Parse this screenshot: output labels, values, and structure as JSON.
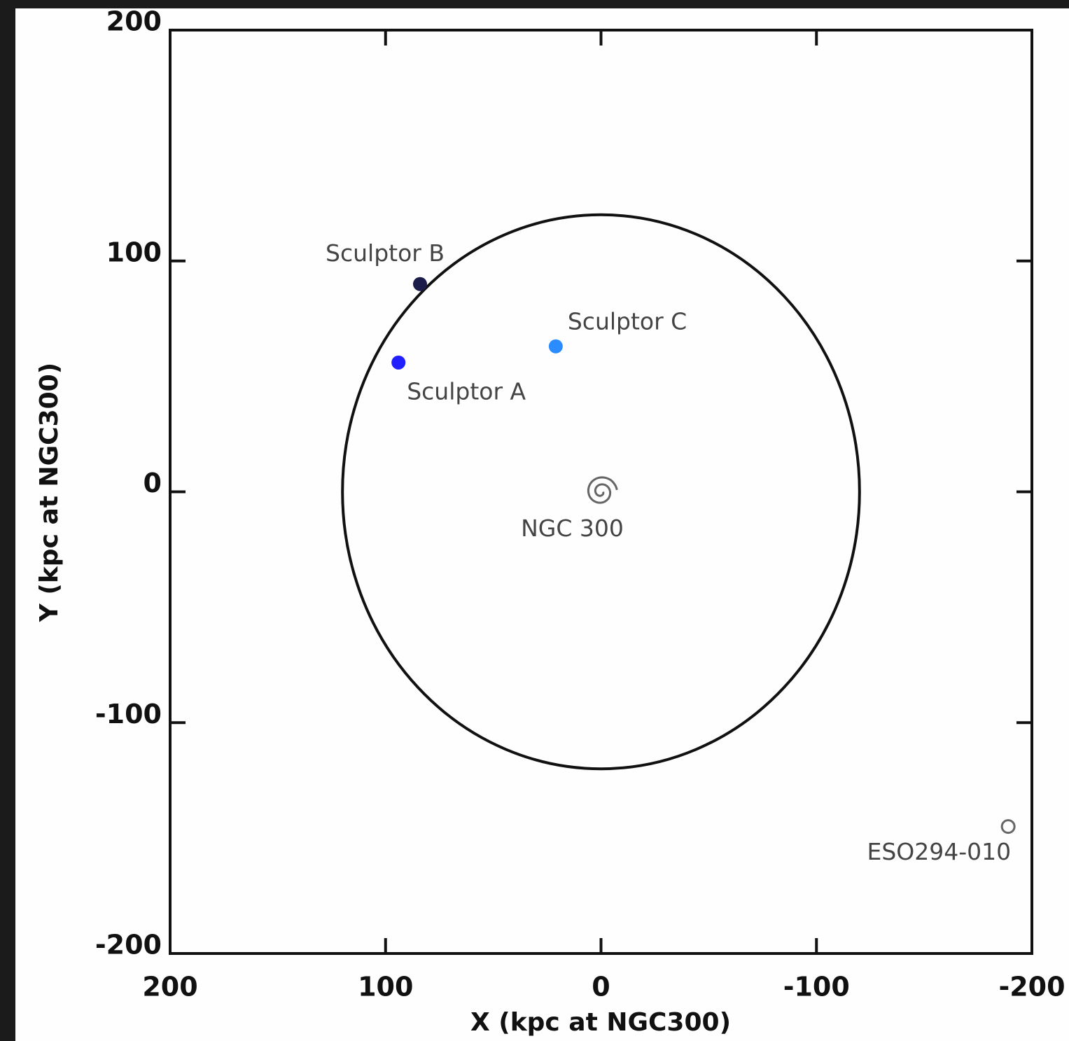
{
  "chart_data": {
    "type": "scatter",
    "xlabel": "X (kpc at NGC300)",
    "ylabel": "Y (kpc at NGC300)",
    "xlim": [
      200,
      -200
    ],
    "ylim": [
      -200,
      200
    ],
    "xticks": [
      200,
      100,
      0,
      -100,
      -200
    ],
    "yticks": [
      -200,
      -100,
      0,
      100,
      200
    ],
    "ring": {
      "x": 0,
      "y": 0,
      "radius": 120,
      "color": "#111111"
    },
    "series": [
      {
        "name": "Sculptor A",
        "color": "#1f1fff",
        "marker": "dot",
        "x": [
          94
        ],
        "y": [
          56
        ]
      },
      {
        "name": "Sculptor B",
        "color": "#1c1c4a",
        "marker": "dot",
        "x": [
          84
        ],
        "y": [
          90
        ]
      },
      {
        "name": "Sculptor C",
        "color": "#2a8cff",
        "marker": "dot",
        "x": [
          21
        ],
        "y": [
          63
        ]
      },
      {
        "name": "NGC 300",
        "color": "#666666",
        "marker": "spiral",
        "x": [
          0
        ],
        "y": [
          0
        ]
      },
      {
        "name": "ESO294-010",
        "color": "#666666",
        "marker": "open",
        "x": [
          -189
        ],
        "y": [
          -145
        ]
      }
    ]
  }
}
